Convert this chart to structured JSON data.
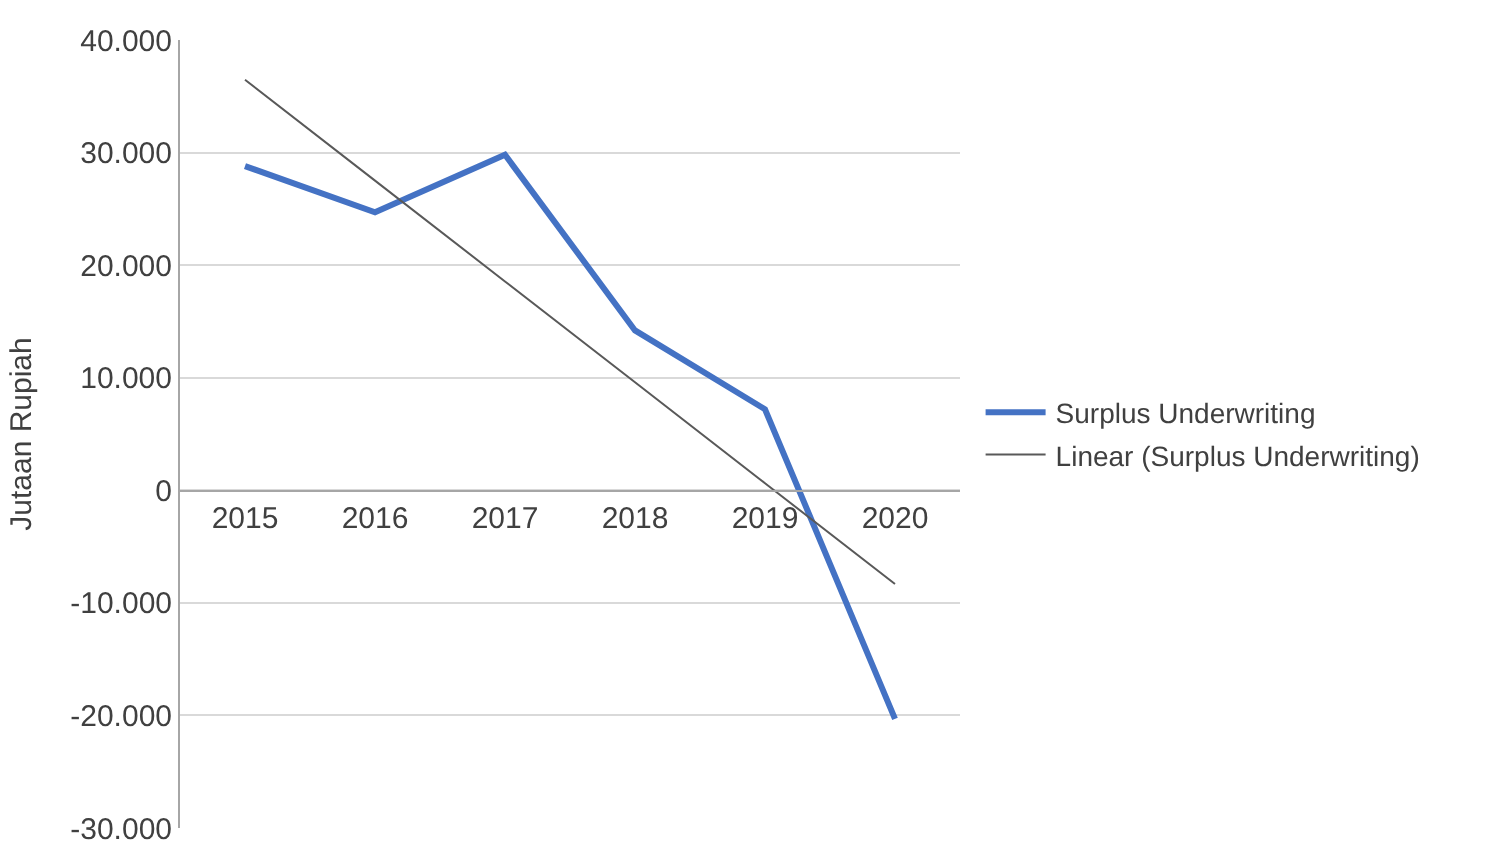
{
  "chart_data": {
    "type": "line",
    "ylabel": "Jutaan Rupiah",
    "categories": [
      "2015",
      "2016",
      "2017",
      "2018",
      "2019",
      "2020"
    ],
    "series": [
      {
        "name": "Surplus Underwriting",
        "color": "#4472c4",
        "values": [
          28800,
          24700,
          29800,
          14200,
          7200,
          -20300
        ]
      },
      {
        "name": "Linear (Surplus Underwriting)",
        "color": "#595959",
        "values": [
          36470,
          27510,
          18550,
          9590,
          630,
          -8330
        ]
      }
    ],
    "ylim": [
      -30000,
      40000
    ],
    "yticks": [
      {
        "value": -30000,
        "label": "-30.000"
      },
      {
        "value": -20000,
        "label": "-20.000"
      },
      {
        "value": -10000,
        "label": "-10.000"
      },
      {
        "value": 0,
        "label": "0"
      },
      {
        "value": 10000,
        "label": "10.000"
      },
      {
        "value": 20000,
        "label": "20.000"
      },
      {
        "value": 30000,
        "label": "30.000"
      },
      {
        "value": 40000,
        "label": "40.000"
      }
    ],
    "grid": "y",
    "legend": "right",
    "marker": "none",
    "line_style": "solid"
  }
}
